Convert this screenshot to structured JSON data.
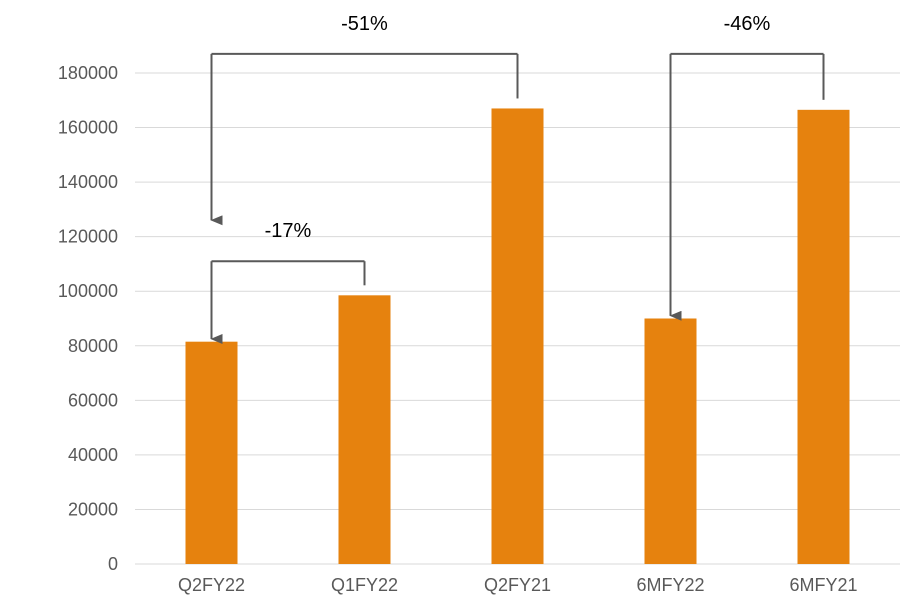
{
  "chart_data": {
    "type": "bar",
    "categories": [
      "Q2FY22",
      "Q1FY22",
      "Q2FY21",
      "6MFY22",
      "6MFY21"
    ],
    "series": [
      {
        "values": [
          81500,
          98500,
          167000,
          90000,
          166500
        ]
      }
    ],
    "ylim": [
      0,
      180000
    ],
    "yticks": [
      0,
      20000,
      40000,
      60000,
      80000,
      100000,
      120000,
      140000,
      160000,
      180000
    ],
    "grid": true,
    "colors": {
      "bar": "#E6820E",
      "grid": "#D9D9D9",
      "arrow": "#595959"
    },
    "annotations": [
      {
        "label": "-51%",
        "from_category": "Q2FY21",
        "to_category": "Q2FY22",
        "line_level": 187000,
        "arrow_end": 126000
      },
      {
        "label": "-17%",
        "from_category": "Q1FY22",
        "to_category": "Q2FY22",
        "line_level": 111000,
        "arrow_end": 82500
      },
      {
        "label": "-46%",
        "from_category": "6MFY21",
        "to_category": "6MFY22",
        "line_level": 187000,
        "arrow_end": 91000
      }
    ]
  }
}
